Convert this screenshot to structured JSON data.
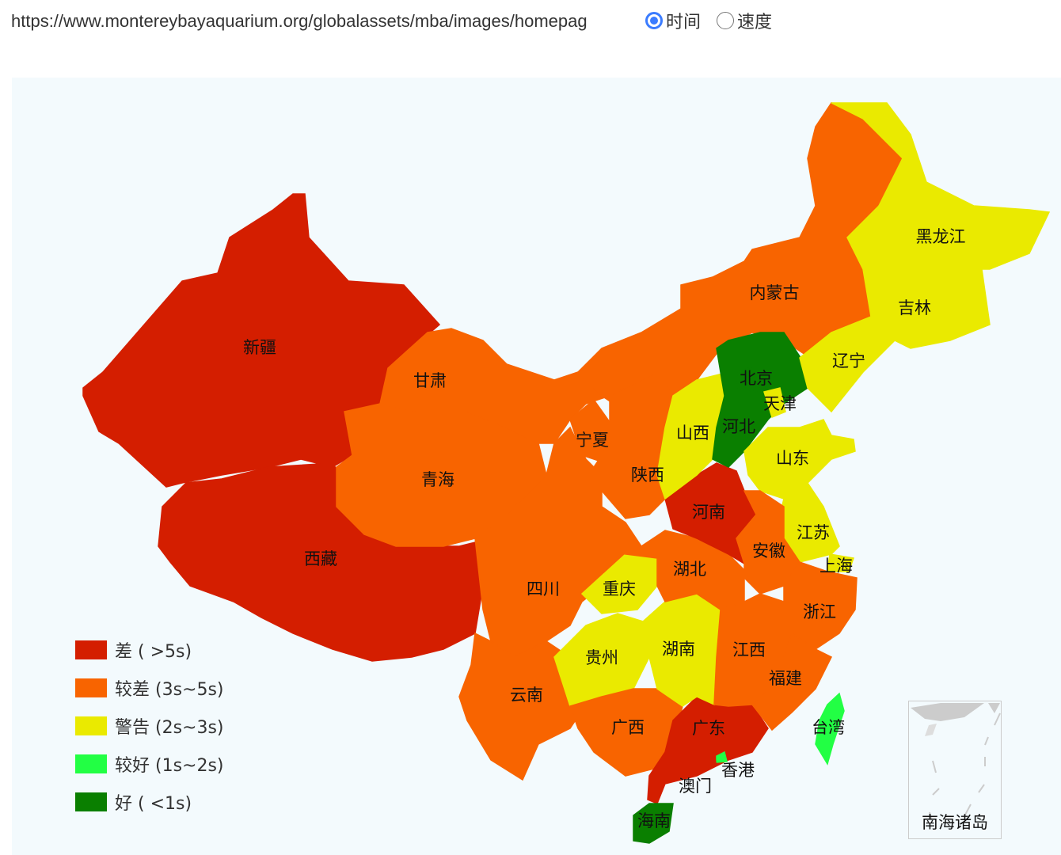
{
  "header": {
    "url": "https://www.montereybayaquarium.org/globalassets/mba/images/homepag",
    "options": [
      {
        "label": "时间",
        "selected": true
      },
      {
        "label": "速度",
        "selected": false
      }
    ]
  },
  "legend": [
    {
      "level": "bad",
      "label": "差 ( >5s)",
      "color": "#d41e00"
    },
    {
      "level": "poor",
      "label": "较差 (3s~5s)",
      "color": "#f86400"
    },
    {
      "level": "warn",
      "label": "警告 (2s~3s)",
      "color": "#eaea00"
    },
    {
      "level": "fair",
      "label": "较好 (1s~2s)",
      "color": "#22ff44"
    },
    {
      "level": "good",
      "label": "好 ( <1s)",
      "color": "#0a7f00"
    }
  ],
  "provinces": [
    {
      "name": "新疆",
      "level": "bad"
    },
    {
      "name": "西藏",
      "level": "bad"
    },
    {
      "name": "青海",
      "level": "poor"
    },
    {
      "name": "甘肃",
      "level": "poor"
    },
    {
      "name": "内蒙古",
      "level": "poor"
    },
    {
      "name": "宁夏",
      "level": "poor"
    },
    {
      "name": "陕西",
      "level": "poor"
    },
    {
      "name": "四川",
      "level": "poor"
    },
    {
      "name": "重庆",
      "level": "warn"
    },
    {
      "name": "云南",
      "level": "poor"
    },
    {
      "name": "贵州",
      "level": "warn"
    },
    {
      "name": "广西",
      "level": "poor"
    },
    {
      "name": "广东",
      "level": "bad"
    },
    {
      "name": "海南",
      "level": "good"
    },
    {
      "name": "湖南",
      "level": "warn"
    },
    {
      "name": "湖北",
      "level": "poor"
    },
    {
      "name": "河南",
      "level": "bad"
    },
    {
      "name": "山西",
      "level": "warn"
    },
    {
      "name": "河北",
      "level": "good"
    },
    {
      "name": "北京",
      "level": "good"
    },
    {
      "name": "天津",
      "level": "warn"
    },
    {
      "name": "山东",
      "level": "warn"
    },
    {
      "name": "辽宁",
      "level": "warn"
    },
    {
      "name": "吉林",
      "level": "warn"
    },
    {
      "name": "黑龙江",
      "level": "warn"
    },
    {
      "name": "江苏",
      "level": "warn"
    },
    {
      "name": "上海",
      "level": "warn"
    },
    {
      "name": "安徽",
      "level": "poor"
    },
    {
      "name": "浙江",
      "level": "poor"
    },
    {
      "name": "江西",
      "level": "poor"
    },
    {
      "name": "福建",
      "level": "poor"
    },
    {
      "name": "台湾",
      "level": "fair"
    },
    {
      "name": "香港",
      "level": "fair"
    },
    {
      "name": "澳门",
      "level": "bad"
    }
  ],
  "inset": {
    "label": "南海诸岛"
  }
}
